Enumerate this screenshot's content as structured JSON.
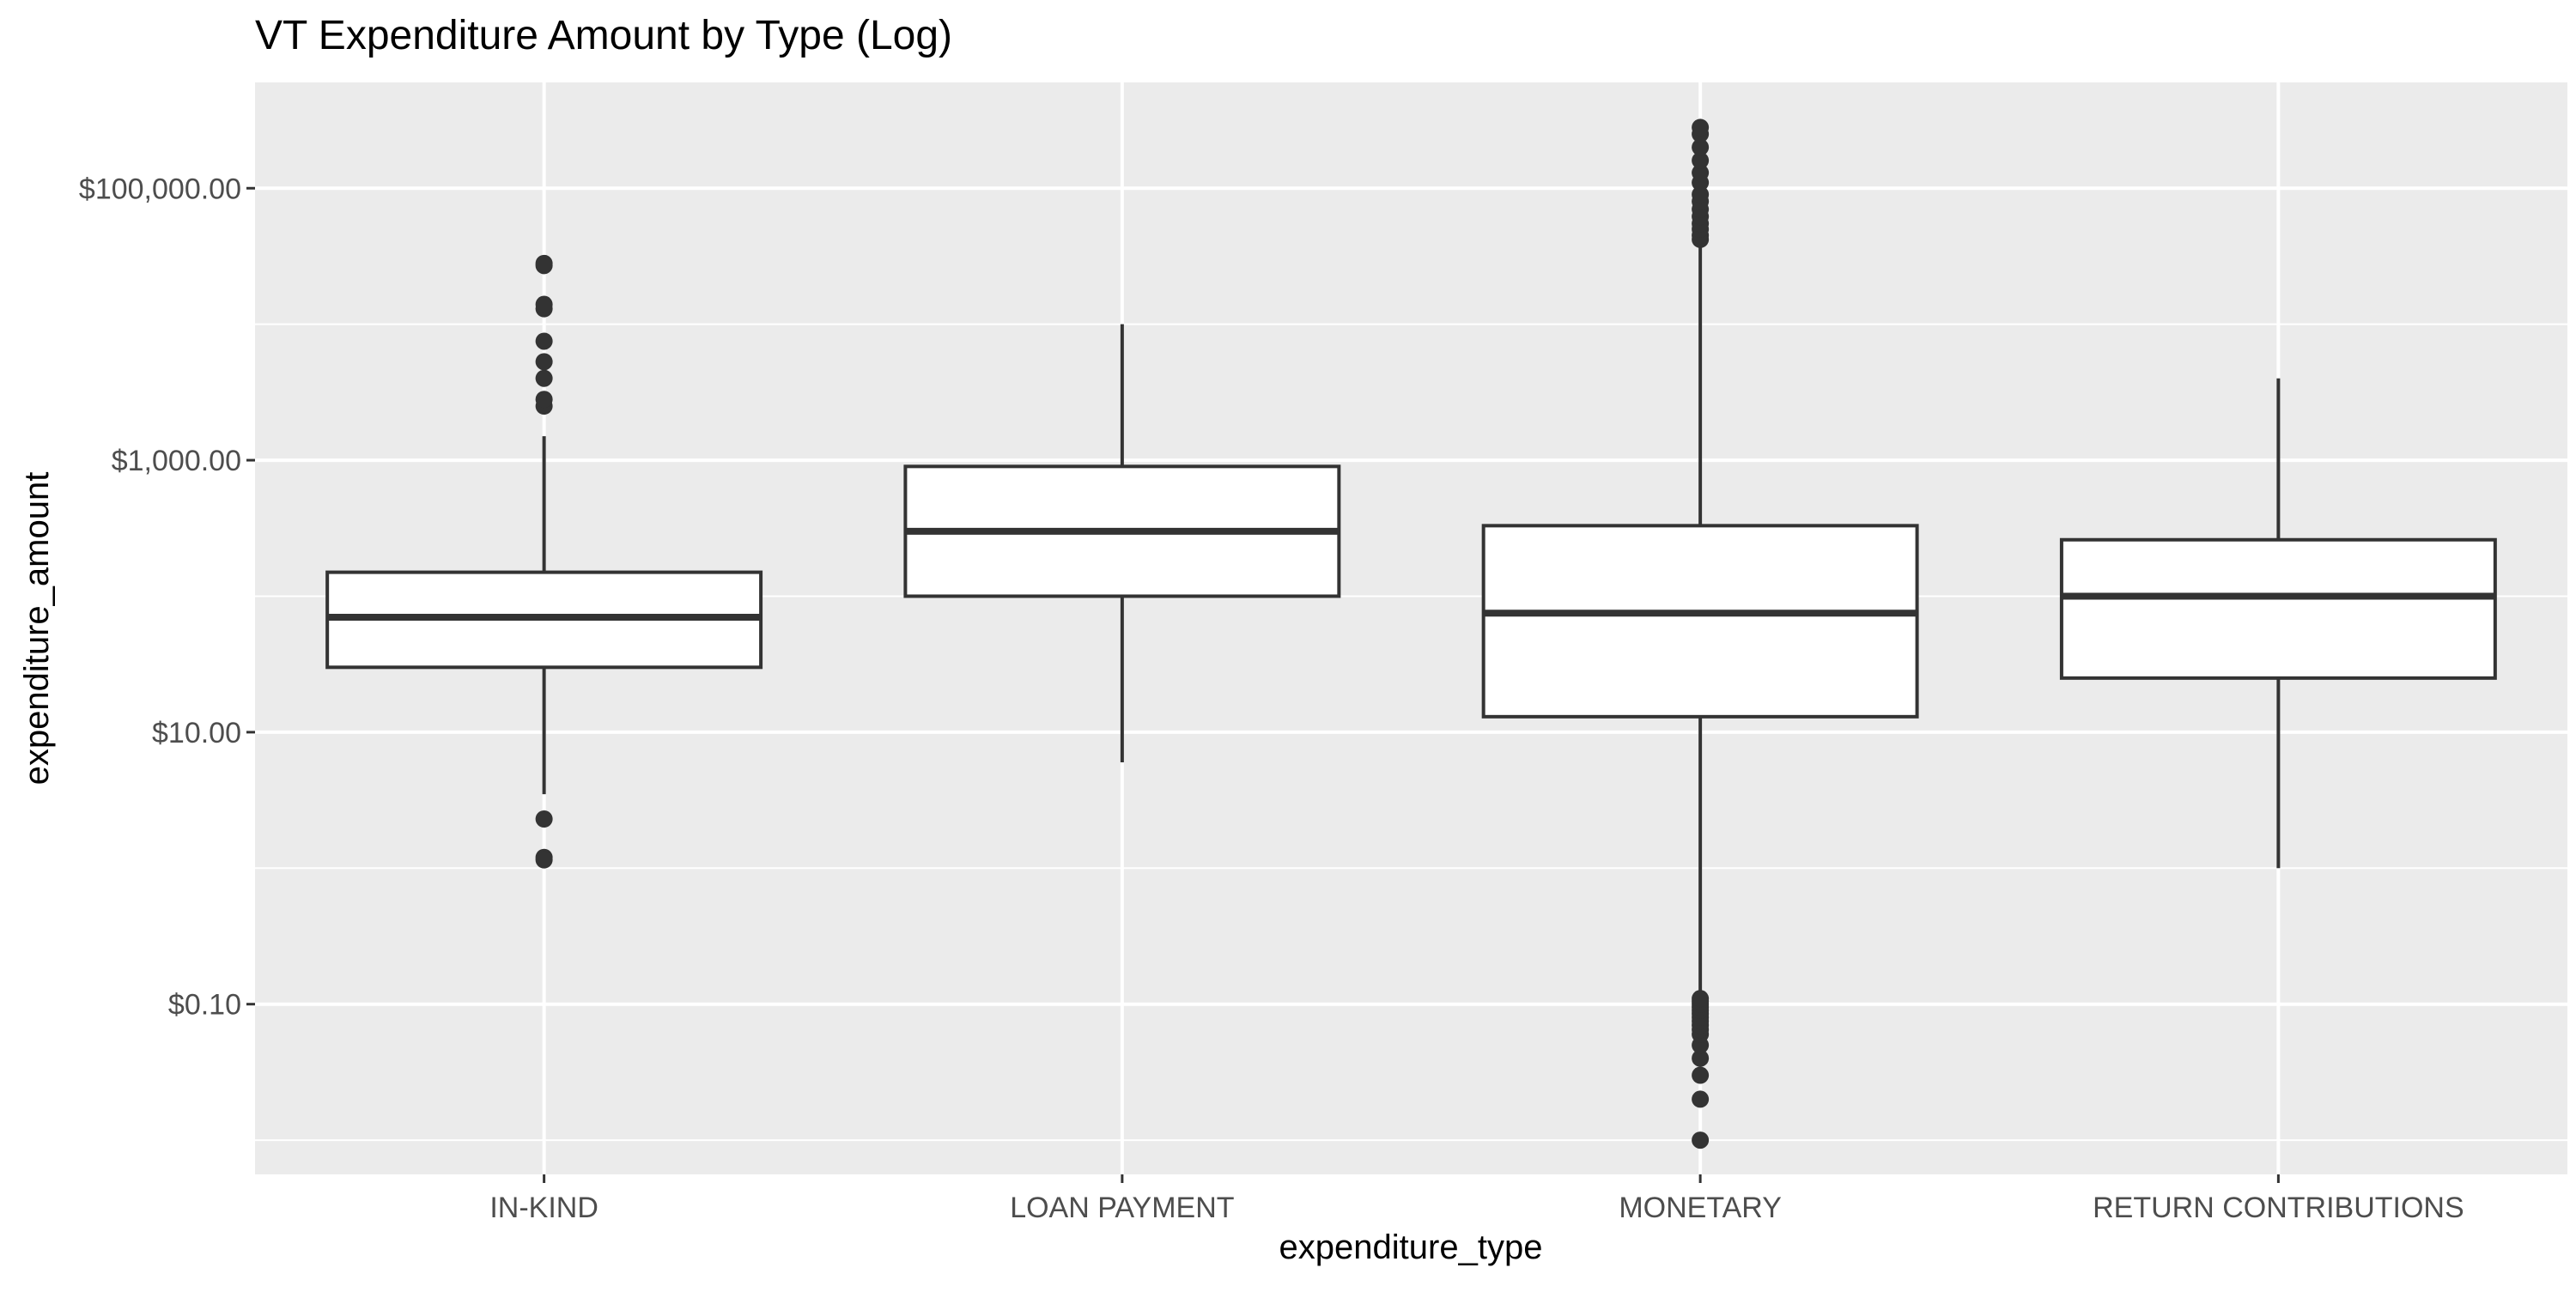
{
  "chart_data": {
    "type": "box",
    "title": "VT Expenditure Amount by Type (Log)",
    "xlabel": "expenditure_type",
    "ylabel": "expenditure_amount",
    "y_scale": "log10",
    "ylim": [
      0.0056,
      600000
    ],
    "y_ticks": [
      {
        "value": 0.1,
        "label": "$0.10"
      },
      {
        "value": 10,
        "label": "$10.00"
      },
      {
        "value": 1000,
        "label": "$1,000.00"
      },
      {
        "value": 100000,
        "label": "$100,000.00"
      }
    ],
    "y_minor_ticks": [
      0.01,
      1,
      100,
      10000
    ],
    "grid": true,
    "categories": [
      "IN-KIND",
      "LOAN PAYMENT",
      "MONETARY",
      "RETURN CONTRIBUTIONS"
    ],
    "boxes": [
      {
        "category": "IN-KIND",
        "whisker_low": 3.5,
        "q1": 30,
        "median": 70,
        "q3": 150,
        "whisker_high": 1500,
        "outliers": [
          1.2,
          1.15,
          2.3,
          2500,
          2800,
          4000,
          5300,
          7500,
          13000,
          14000,
          27000,
          28000
        ]
      },
      {
        "category": "LOAN PAYMENT",
        "whisker_low": 6,
        "q1": 100,
        "median": 300,
        "q3": 900,
        "whisker_high": 10000,
        "outliers": []
      },
      {
        "category": "MONETARY",
        "whisker_low": 0.115,
        "q1": 13,
        "median": 75,
        "q3": 330,
        "whisker_high": 40000,
        "outliers": [
          0.01,
          0.02,
          0.03,
          0.04,
          0.05,
          0.06,
          0.065,
          0.07,
          0.075,
          0.08,
          0.085,
          0.09,
          0.095,
          0.1,
          0.105,
          0.11,
          42000,
          45000,
          50000,
          55000,
          62000,
          70000,
          80000,
          90000,
          110000,
          130000,
          160000,
          200000,
          250000,
          280000
        ]
      },
      {
        "category": "RETURN CONTRIBUTIONS",
        "whisker_low": 1,
        "q1": 25,
        "median": 100,
        "q3": 260,
        "whisker_high": 4000,
        "outliers": []
      }
    ]
  }
}
